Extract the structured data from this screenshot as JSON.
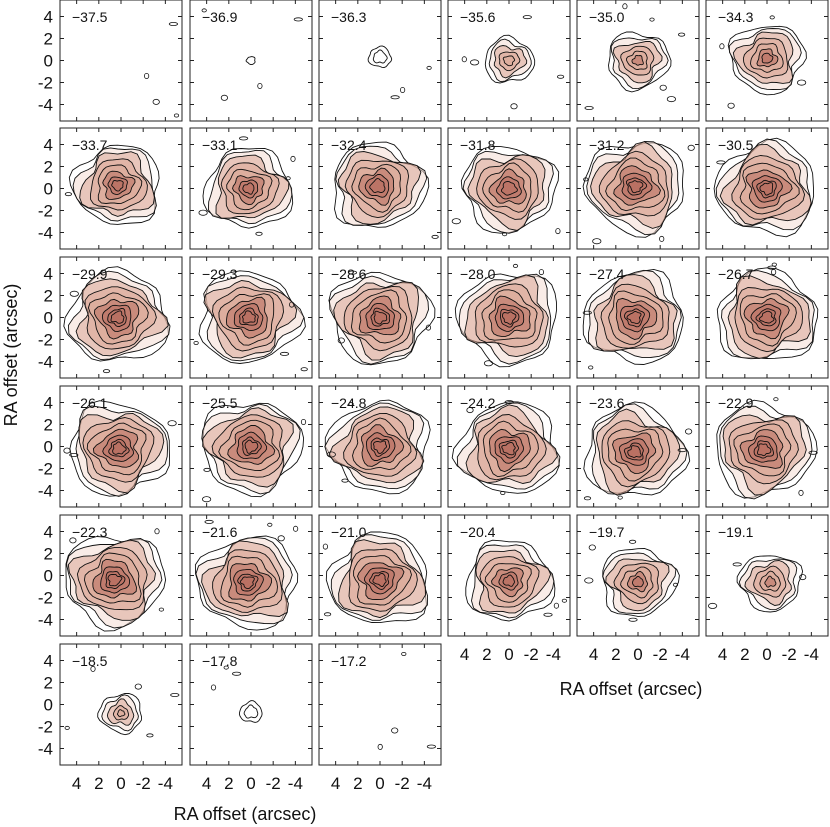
{
  "chart_data": {
    "type": "channel_map_grid",
    "xlabel": "RA offset (arcsec)",
    "ylabel": "RA offset (arcsec)",
    "x_ticks": [
      "4",
      "2",
      "0",
      "-2",
      "-4"
    ],
    "y_ticks": [
      "4",
      "2",
      "0",
      "-2",
      "-4"
    ],
    "xlim": [
      5.5,
      -5.5
    ],
    "ylim": [
      -5.5,
      5.5
    ],
    "grid_columns": 6,
    "panels": [
      {
        "label": "−37.5",
        "peak": 0.3,
        "cx": 0.0,
        "cy": 0.0
      },
      {
        "label": "−36.9",
        "peak": 0.4,
        "cx": 0.0,
        "cy": 0.0
      },
      {
        "label": "−36.3",
        "peak": 1.5,
        "cx": 0.0,
        "cy": 0.3
      },
      {
        "label": "−35.6",
        "peak": 4.0,
        "cx": 0.0,
        "cy": 0.0
      },
      {
        "label": "−35.0",
        "peak": 5.0,
        "cx": 0.0,
        "cy": 0.0
      },
      {
        "label": "−34.3",
        "peak": 6.0,
        "cx": 0.0,
        "cy": 0.2
      },
      {
        "label": "−33.7",
        "peak": 7.0,
        "cx": 0.3,
        "cy": 0.3
      },
      {
        "label": "−33.1",
        "peak": 7.0,
        "cx": 0.2,
        "cy": 0.0
      },
      {
        "label": "−32.4",
        "peak": 7.5,
        "cx": 0.2,
        "cy": 0.2
      },
      {
        "label": "−31.8",
        "peak": 7.5,
        "cx": 0.0,
        "cy": 0.0
      },
      {
        "label": "−31.2",
        "peak": 8.0,
        "cx": 0.2,
        "cy": 0.2
      },
      {
        "label": "−30.5",
        "peak": 8.0,
        "cx": 0.0,
        "cy": 0.0
      },
      {
        "label": "−29.9",
        "peak": 8.0,
        "cx": 0.3,
        "cy": 0.0
      },
      {
        "label": "−29.3",
        "peak": 8.0,
        "cx": 0.2,
        "cy": 0.0
      },
      {
        "label": "−28.6",
        "peak": 8.0,
        "cx": 0.0,
        "cy": 0.0
      },
      {
        "label": "−28.0",
        "peak": 8.0,
        "cx": 0.0,
        "cy": 0.0
      },
      {
        "label": "−27.4",
        "peak": 8.0,
        "cx": 0.3,
        "cy": 0.0
      },
      {
        "label": "−26.7",
        "peak": 8.0,
        "cx": 0.0,
        "cy": 0.0
      },
      {
        "label": "−26.1",
        "peak": 8.0,
        "cx": 0.2,
        "cy": -0.2
      },
      {
        "label": "−25.5",
        "peak": 8.0,
        "cx": 0.0,
        "cy": 0.0
      },
      {
        "label": "−24.8",
        "peak": 8.0,
        "cx": 0.0,
        "cy": 0.0
      },
      {
        "label": "−24.2",
        "peak": 8.0,
        "cx": 0.0,
        "cy": -0.2
      },
      {
        "label": "−23.6",
        "peak": 8.0,
        "cx": 0.3,
        "cy": -0.5
      },
      {
        "label": "−22.9",
        "peak": 8.0,
        "cx": 0.3,
        "cy": -0.3
      },
      {
        "label": "−22.3",
        "peak": 8.0,
        "cx": 0.6,
        "cy": -0.4
      },
      {
        "label": "−21.6",
        "peak": 8.0,
        "cx": 0.3,
        "cy": -0.6
      },
      {
        "label": "−21.0",
        "peak": 8.0,
        "cx": 0.0,
        "cy": -0.4
      },
      {
        "label": "−20.4",
        "peak": 7.0,
        "cx": 0.0,
        "cy": -0.5
      },
      {
        "label": "−19.7",
        "peak": 6.0,
        "cx": 0.0,
        "cy": -0.6
      },
      {
        "label": "−19.1",
        "peak": 5.0,
        "cx": -0.3,
        "cy": -0.6
      },
      {
        "label": "−18.5",
        "peak": 3.5,
        "cx": 0.0,
        "cy": -0.8
      },
      {
        "label": "−17.8",
        "peak": 1.5,
        "cx": 0.0,
        "cy": -0.7
      },
      {
        "label": "−17.2",
        "peak": 0.3,
        "cx": 0.0,
        "cy": 0.0
      }
    ]
  },
  "colors": {
    "contour": "#111111",
    "fill_core": "#b87060",
    "fill_mid": "#dba898",
    "fill_outer": "#f4dcd4"
  }
}
